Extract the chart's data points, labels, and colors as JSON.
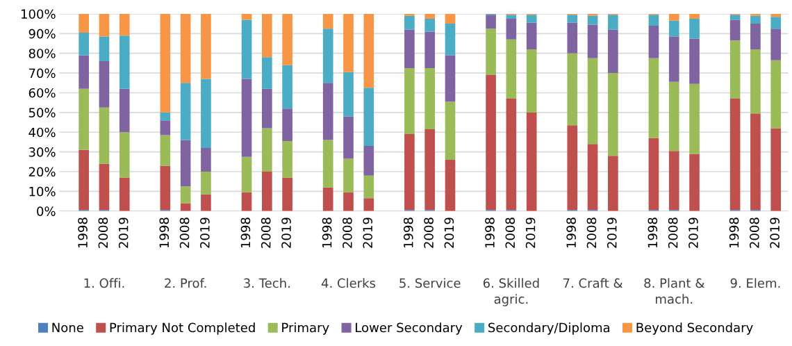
{
  "chart_data": {
    "type": "bar",
    "stacked": true,
    "categories": [
      "1998",
      "2008",
      "2019",
      "1998",
      "2008",
      "2019",
      "1998",
      "2008",
      "2019",
      "1998",
      "2008",
      "2019",
      "1998",
      "2008",
      "2019",
      "1998",
      "2008",
      "2019",
      "1998",
      "2008",
      "2019",
      "1998",
      "2008",
      "2019",
      "1998",
      "2008",
      "2019"
    ],
    "annotations": [
      "1. Offi.",
      "2. Prof.",
      "3. Tech.",
      "4. Clerks",
      "5. Service",
      "6. Skilled\nagric.",
      "7. Craft &",
      "8. Plant &\nmach.",
      "9. Elem."
    ],
    "series": [
      {
        "name": "None",
        "color": "#4f81bd",
        "values": [
          0.5,
          0.5,
          0,
          0.5,
          0,
          0,
          0,
          0,
          0,
          0,
          0,
          0,
          0.5,
          0.5,
          0,
          0.5,
          0.5,
          0,
          0.5,
          0.5,
          0,
          0.5,
          0.5,
          0,
          0.5,
          0.5,
          0
        ]
      },
      {
        "name": "Primary Not Completed",
        "color": "#c0504d",
        "values": [
          30.5,
          23.5,
          17,
          22.5,
          4,
          8.5,
          9.5,
          20,
          17,
          12,
          9.5,
          6.5,
          38.5,
          41,
          26,
          68.5,
          56.5,
          50,
          43,
          33.5,
          28,
          36.5,
          30,
          29,
          56.5,
          49,
          42
        ]
      },
      {
        "name": "Primary",
        "color": "#9bbb59",
        "values": [
          31,
          28.5,
          23,
          15.5,
          8.5,
          11.5,
          18,
          22,
          18.5,
          24,
          17,
          11.5,
          33.5,
          31,
          29.5,
          23.5,
          30,
          32,
          36.5,
          43.5,
          42,
          40.5,
          35,
          35.5,
          29.5,
          32.5,
          34.5
        ]
      },
      {
        "name": "Lower Secondary",
        "color": "#8064a2",
        "values": [
          17,
          23.5,
          22,
          7.5,
          23.5,
          12,
          39.5,
          20,
          16.5,
          29,
          21.5,
          15,
          19.5,
          18.5,
          23.5,
          7,
          10.5,
          13.5,
          15.5,
          17,
          22,
          16.5,
          23,
          23,
          10.5,
          13,
          16
        ]
      },
      {
        "name": "Secondary/Diploma",
        "color": "#4bacc6",
        "values": [
          11.5,
          12.5,
          27,
          4,
          29,
          35,
          30,
          16,
          22,
          27.5,
          22.5,
          29.5,
          7,
          6.5,
          16,
          0.5,
          2,
          4,
          4,
          4.5,
          7.5,
          5.5,
          8,
          10,
          2.5,
          4,
          6
        ]
      },
      {
        "name": "Beyond Secondary",
        "color": "#f79646",
        "values": [
          9.5,
          11.5,
          11,
          50,
          35,
          33,
          3,
          22,
          26,
          7.5,
          29.5,
          37.5,
          1,
          2.5,
          5,
          0,
          0.5,
          0.5,
          0.5,
          1,
          0.5,
          0.5,
          3.5,
          2.5,
          0.5,
          1,
          1.5
        ]
      }
    ],
    "ylim": [
      0,
      100
    ],
    "yticks": [
      {
        "value": 0,
        "label": "0%"
      },
      {
        "value": 10,
        "label": "10%"
      },
      {
        "value": 20,
        "label": "20%"
      },
      {
        "value": 30,
        "label": "30%"
      },
      {
        "value": 40,
        "label": "40%"
      },
      {
        "value": 50,
        "label": "50%"
      },
      {
        "value": 60,
        "label": "60%"
      },
      {
        "value": 70,
        "label": "70%"
      },
      {
        "value": 80,
        "label": "80%"
      },
      {
        "value": 90,
        "label": "90%"
      },
      {
        "value": 100,
        "label": "100%"
      }
    ],
    "grid": "y",
    "legend": "bottom"
  }
}
